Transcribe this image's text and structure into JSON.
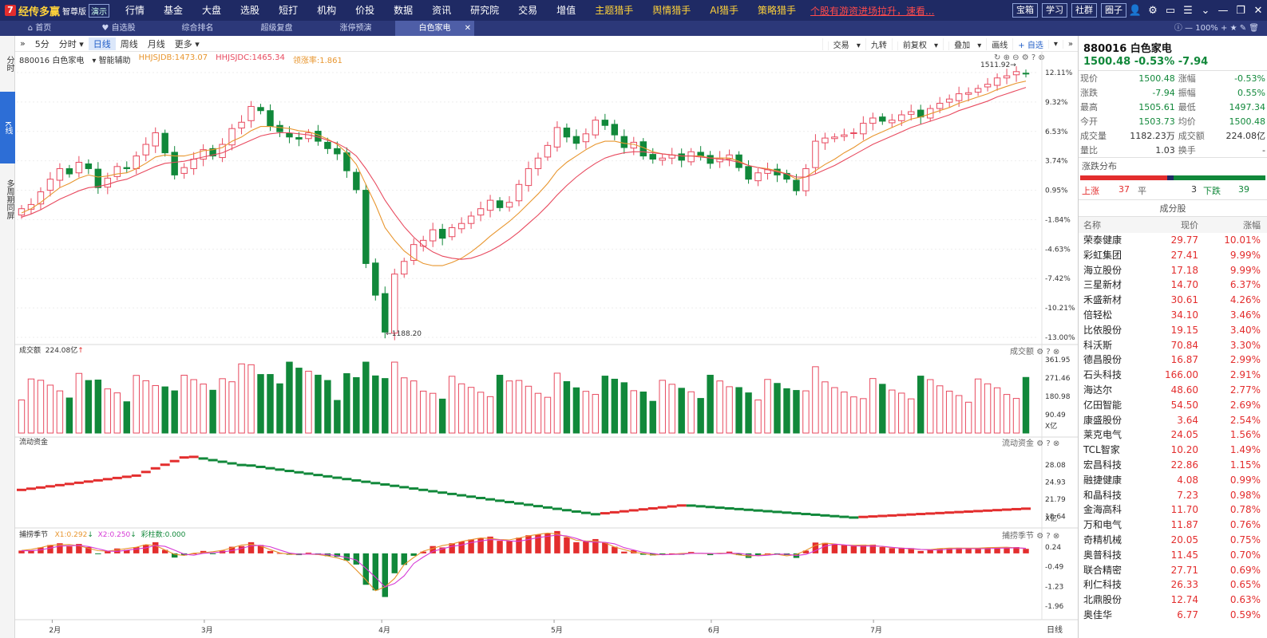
{
  "app": {
    "logo": "经传多赢",
    "edition": "智尊版",
    "badge": "演示",
    "menu": [
      "行情",
      "基金",
      "大盘",
      "选股",
      "短打",
      "机构",
      "价投",
      "数据",
      "资讯",
      "研究院",
      "交易",
      "增值",
      "主题猎手",
      "舆情猎手",
      "AI猎手",
      "策略猎手"
    ],
    "promo": "个股有游资进场拉升，速看..."
  },
  "topright": {
    "buttons": [
      "宝箱",
      "学习",
      "社群",
      "圈子"
    ]
  },
  "tabs": [
    {
      "label": "首页"
    },
    {
      "label": "自选股"
    },
    {
      "label": "综合排名"
    },
    {
      "label": "超级复盘"
    },
    {
      "label": "涨停预演"
    },
    {
      "label": "白色家电",
      "active": true
    }
  ],
  "zoom": "100%",
  "leftnav": [
    "分时",
    "K线",
    "多周期同屏"
  ],
  "toolbar": {
    "periods": [
      "5分",
      "分时",
      "日线",
      "周线",
      "月线",
      "更多"
    ],
    "right": [
      "交易",
      "九转",
      "前复权",
      "叠加",
      "画线",
      "+ 自选"
    ]
  },
  "chart_info": {
    "code_name": "880016 白色家电",
    "assist": "智能辅助",
    "ind1": "HHJSJDB:1473.07",
    "ind2": "HHJSJDC:1465.34",
    "ind3": "领涨率:1.861"
  },
  "chart_data": {
    "type": "candlestick",
    "x_labels": [
      "2月",
      "3月",
      "4月",
      "5月",
      "6月",
      "7月"
    ],
    "y_ticks": [
      "12.11%",
      "9.32%",
      "6.53%",
      "3.74%",
      "0.95%",
      "-1.84%",
      "-4.63%",
      "-7.42%",
      "-10.21%",
      "-13.00%"
    ],
    "y_range": [
      -13.0,
      12.11
    ],
    "max_label": "1511.92",
    "min_label": "1188.20",
    "close_pct": [
      -0.8,
      -0.4,
      0.8,
      2.0,
      3.0,
      2.5,
      3.6,
      3.0,
      1.2,
      2.1,
      3.2,
      3.0,
      4.2,
      5.3,
      6.4,
      4.5,
      2.4,
      3.1,
      3.9,
      4.8,
      4.2,
      5.3,
      6.8,
      7.4,
      8.9,
      8.5,
      7.0,
      6.5,
      6.0,
      5.8,
      6.4,
      5.6,
      4.9,
      4.4,
      2.8,
      1.0,
      -6.0,
      -9.0,
      -12.5,
      -7.0,
      -5.8,
      -4.2,
      -3.8,
      -2.8,
      -3.6,
      -2.6,
      -2.2,
      -1.5,
      -0.8,
      0.0,
      -0.7,
      -0.2,
      1.5,
      3.0,
      4.0,
      5.2,
      6.9,
      6.0,
      5.4,
      6.3,
      7.6,
      7.1,
      6.2,
      5.0,
      5.5,
      4.2,
      3.9,
      4.0,
      4.3,
      3.8,
      4.6,
      4.2,
      3.5,
      4.0,
      4.3,
      3.1,
      2.0,
      2.6,
      2.9,
      2.4,
      2.0,
      0.9,
      3.0,
      5.6,
      5.9,
      6.0,
      6.2,
      6.4,
      7.3,
      7.8,
      7.5,
      7.6,
      8.1,
      8.4,
      7.9,
      8.7,
      9.2,
      9.6,
      10.1,
      10.2,
      10.6,
      11.0,
      11.6,
      11.8,
      12.2,
      12.0
    ],
    "ma_short": [
      -1.2,
      -0.8,
      -0.2,
      0.5,
      1.2,
      1.6,
      2.1,
      2.4,
      2.2,
      2.3,
      2.5,
      2.6,
      3.0,
      3.5,
      4.1,
      4.3,
      4.2,
      4.2,
      4.4,
      4.7,
      4.8,
      5.0,
      5.6,
      6.0,
      6.6,
      7.0,
      7.0,
      6.9,
      6.8,
      6.6,
      6.5,
      6.2,
      5.8,
      5.3,
      4.5,
      3.4,
      1.5,
      -0.4,
      -2.6,
      -3.8,
      -4.8,
      -5.5,
      -6.0,
      -6.2,
      -6.2,
      -5.9,
      -5.5,
      -4.9,
      -4.2,
      -3.4,
      -2.7,
      -2.0,
      -1.2,
      -0.3,
      0.6,
      1.6,
      2.8,
      3.6,
      4.2,
      4.8,
      5.3,
      5.6,
      5.6,
      5.4,
      5.3,
      5.0,
      4.6,
      4.4,
      4.3,
      4.2,
      4.2,
      4.2,
      4.0,
      4.0,
      4.0,
      3.7,
      3.3,
      3.1,
      3.0,
      2.8,
      2.5,
      2.0,
      2.2,
      2.8,
      3.4,
      3.9,
      4.5,
      5.0,
      5.6,
      6.1,
      6.5,
      6.9,
      7.3,
      7.7,
      7.9,
      8.2,
      8.5,
      8.8,
      9.2,
      9.5,
      9.8,
      10.1,
      10.5,
      10.8,
      11.1,
      11.3
    ],
    "ma_long": [
      -1.6,
      -1.3,
      -0.9,
      -0.4,
      0.1,
      0.5,
      0.9,
      1.2,
      1.3,
      1.5,
      1.8,
      2.0,
      2.4,
      2.8,
      3.2,
      3.5,
      3.6,
      3.7,
      3.9,
      4.1,
      4.3,
      4.5,
      4.9,
      5.3,
      5.7,
      6.1,
      6.3,
      6.4,
      6.4,
      6.3,
      6.2,
      6.0,
      5.7,
      5.4,
      4.9,
      4.2,
      3.0,
      1.6,
      0.0,
      -1.3,
      -2.5,
      -3.5,
      -4.3,
      -4.9,
      -5.3,
      -5.5,
      -5.6,
      -5.5,
      -5.2,
      -4.8,
      -4.3,
      -3.7,
      -3.0,
      -2.2,
      -1.4,
      -0.5,
      0.5,
      1.4,
      2.2,
      2.9,
      3.5,
      4.0,
      4.3,
      4.5,
      4.6,
      4.6,
      4.5,
      4.4,
      4.3,
      4.2,
      4.2,
      4.1,
      4.0,
      3.9,
      3.8,
      3.6,
      3.3,
      3.1,
      2.9,
      2.7,
      2.5,
      2.2,
      2.2,
      2.5,
      2.9,
      3.3,
      3.8,
      4.3,
      4.8,
      5.3,
      5.7,
      6.1,
      6.5,
      6.9,
      7.2,
      7.5,
      7.8,
      8.1,
      8.5,
      8.8,
      9.1,
      9.4,
      9.8,
      10.1,
      10.4,
      10.7
    ]
  },
  "volume_panel": {
    "title": "成交额",
    "value": "224.08亿",
    "y_ticks": [
      "361.95",
      "271.46",
      "180.98",
      "90.49"
    ],
    "unit": "X亿",
    "y_max": 362
  },
  "flow_panel": {
    "title": "流动资金",
    "y_ticks": [
      "28.08",
      "24.93",
      "21.79",
      "18.64"
    ],
    "unit": "X亿",
    "y_range": [
      17.5,
      31.5
    ]
  },
  "osc_panel": {
    "title": "捕捞季节",
    "x1": "X1:0.292",
    "x2": "X2:0.250",
    "bars": "彩柱数:0.000",
    "y_ticks": [
      "0.24",
      "-0.49",
      "-1.23",
      "-1.96"
    ],
    "y_range": [
      -2.35,
      0.65
    ]
  },
  "period_label": "日线",
  "quote": {
    "title": "880016 白色家电",
    "price_line": "1500.48 -0.53% -7.94",
    "rows": [
      [
        "现价",
        "1500.48",
        "涨幅",
        "-0.53%"
      ],
      [
        "涨跌",
        "-7.94",
        "振幅",
        "0.55%"
      ],
      [
        "最高",
        "1505.61",
        "最低",
        "1497.34"
      ],
      [
        "今开",
        "1503.73",
        "均价",
        "1500.48"
      ],
      [
        "成交量",
        "1182.23万",
        "成交额",
        "224.08亿"
      ],
      [
        "量比",
        "1.03",
        "换手",
        "-"
      ]
    ]
  },
  "breadth": {
    "title": "涨跌分布",
    "up_label": "上涨",
    "up": "37",
    "flat_label": "平",
    "flat": "3",
    "down_label": "下跌",
    "down": "39"
  },
  "components": {
    "title": "成分股",
    "headers": [
      "名称",
      "现价",
      "涨幅"
    ],
    "rows": [
      [
        "荣泰健康",
        "29.77",
        "10.01%"
      ],
      [
        "彩虹集团",
        "27.41",
        "9.99%"
      ],
      [
        "海立股份",
        "17.18",
        "9.99%"
      ],
      [
        "三星新材",
        "14.70",
        "6.37%"
      ],
      [
        "禾盛新材",
        "30.61",
        "4.26%"
      ],
      [
        "倍轻松",
        "34.10",
        "3.46%"
      ],
      [
        "比依股份",
        "19.15",
        "3.40%"
      ],
      [
        "科沃斯",
        "70.84",
        "3.30%"
      ],
      [
        "德昌股份",
        "16.87",
        "2.99%"
      ],
      [
        "石头科技",
        "166.00",
        "2.91%"
      ],
      [
        "海达尔",
        "48.60",
        "2.77%"
      ],
      [
        "亿田智能",
        "54.50",
        "2.69%"
      ],
      [
        "康盛股份",
        "3.64",
        "2.54%"
      ],
      [
        "莱克电气",
        "24.05",
        "1.56%"
      ],
      [
        "TCL智家",
        "10.20",
        "1.49%"
      ],
      [
        "宏昌科技",
        "22.86",
        "1.15%"
      ],
      [
        "融捷健康",
        "4.08",
        "0.99%"
      ],
      [
        "和晶科技",
        "7.23",
        "0.98%"
      ],
      [
        "金海高科",
        "11.70",
        "0.78%"
      ],
      [
        "万和电气",
        "11.87",
        "0.76%"
      ],
      [
        "奇精机械",
        "20.05",
        "0.75%"
      ],
      [
        "奥普科技",
        "11.45",
        "0.70%"
      ],
      [
        "联合精密",
        "27.71",
        "0.69%"
      ],
      [
        "利仁科技",
        "26.33",
        "0.65%"
      ],
      [
        "北鼎股份",
        "12.74",
        "0.63%"
      ],
      [
        "奥佳华",
        "6.77",
        "0.59%"
      ]
    ]
  }
}
